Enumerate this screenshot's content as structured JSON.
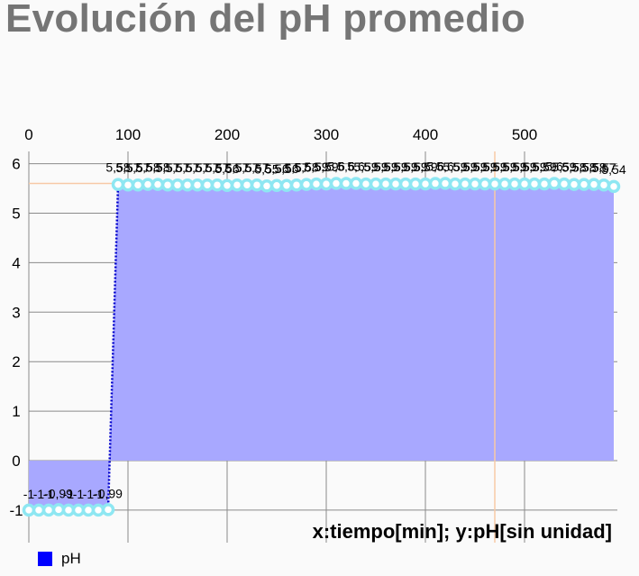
{
  "title": "Evolución del pH promedio",
  "axis_description": "x:tiempo[min]; y:pH[sin unidad]",
  "colors": {
    "fill": "#a8a8ff",
    "line": "#0000cc",
    "marker_stroke": "#8ee7f2",
    "marker_fill": "#ffffff",
    "crosshair": "#f7c9a6",
    "legend": "#0000ff"
  },
  "chart_data": {
    "type": "area",
    "title": "Evolución del pH promedio",
    "xlabel": "x:tiempo[min]",
    "ylabel": "y:pH[sin unidad]",
    "xlim": [
      0,
      590
    ],
    "ylim": [
      -1,
      6
    ],
    "x_ticks": [
      "0",
      "100",
      "200",
      "300",
      "400",
      "500"
    ],
    "y_ticks": [
      "6",
      "5",
      "4",
      "3",
      "2",
      "1",
      "0",
      "-1"
    ],
    "legend": {
      "position": "bottom-left",
      "entries": [
        "pH"
      ]
    },
    "grid": true,
    "highlight": {
      "x": 470,
      "y": 5.6
    },
    "series": [
      {
        "name": "pH",
        "x": [
          0,
          10,
          20,
          30,
          40,
          50,
          60,
          70,
          80,
          90,
          100,
          110,
          120,
          130,
          140,
          150,
          160,
          170,
          180,
          190,
          200,
          210,
          220,
          230,
          240,
          250,
          260,
          270,
          280,
          290,
          300,
          310,
          320,
          330,
          340,
          350,
          360,
          370,
          380,
          390,
          400,
          410,
          420,
          430,
          440,
          450,
          460,
          470,
          480,
          490,
          500,
          510,
          520,
          530,
          540,
          550,
          560,
          570,
          580,
          590
        ],
        "y": [
          -1,
          -1,
          -1,
          -0.99,
          -1,
          -1,
          -1,
          -1,
          -0.99,
          5.58,
          5.57,
          5.57,
          5.58,
          5.58,
          5.57,
          5.57,
          5.57,
          5.57,
          5.57,
          5.57,
          5.56,
          5.57,
          5.57,
          5.57,
          5.55,
          5.56,
          5.56,
          5.57,
          5.58,
          5.59,
          5.59,
          5.6,
          5.6,
          5.6,
          5.59,
          5.59,
          5.59,
          5.59,
          5.59,
          5.59,
          5.59,
          5.6,
          5.6,
          5.59,
          5.59,
          5.59,
          5.59,
          5.59,
          5.59,
          5.59,
          5.59,
          5.59,
          5.59,
          5.6,
          5.59,
          5.58,
          5.58,
          5.58,
          5.57,
          5.54
        ],
        "labels": [
          "-1",
          "-1",
          "-1",
          "-0,99",
          "-1",
          "-1",
          "-1",
          "-1",
          "-0,99",
          "5,58",
          "5,57",
          "5,57",
          "5,58",
          "5,58",
          "5,57",
          "5,57",
          "5,57",
          "5,57",
          "5,57",
          "5,57",
          "5,56",
          "5,57",
          "5,57",
          "5,57",
          "5,55",
          "5,56",
          "5,56",
          "5,57",
          "5,58",
          "5,59",
          "5,59",
          "5,6",
          "5,6",
          "5,6",
          "5,59",
          "5,59",
          "5,59",
          "5,59",
          "5,59",
          "5,59",
          "5,59",
          "5,6",
          "5,6",
          "5,59",
          "5,59",
          "5,59",
          "5,59",
          "5,59",
          "5,59",
          "5,59",
          "5,59",
          "5,59",
          "5,59",
          "5,6",
          "5,59",
          "5,58",
          "5,58",
          "5,58",
          "5,57",
          "5,54"
        ]
      }
    ]
  }
}
